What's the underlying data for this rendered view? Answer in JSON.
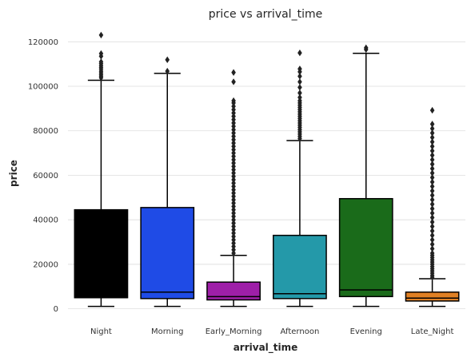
{
  "chart_data": {
    "type": "box",
    "title": "price vs arrival_time",
    "xlabel": "arrival_time",
    "ylabel": "price",
    "ylim": [
      -3000,
      128000
    ],
    "yticks": [
      0,
      20000,
      40000,
      60000,
      80000,
      100000,
      120000
    ],
    "ytick_labels": [
      "0",
      "20000",
      "40000",
      "60000",
      "80000",
      "100000",
      "120000"
    ],
    "grid": "horizontal",
    "categories": [
      "Night",
      "Morning",
      "Early_Morning",
      "Afternoon",
      "Evening",
      "Late_Night"
    ],
    "boxes": [
      {
        "category": "Night",
        "color": "#000000",
        "whisker_low": 1100,
        "q1": 5000,
        "median": 5000,
        "q3": 44500,
        "whisker_high": 102700,
        "outliers": [
          103800,
          104500,
          105200,
          106000,
          106800,
          107700,
          108500,
          109300,
          110200,
          111000,
          113500,
          114700,
          123000
        ]
      },
      {
        "category": "Morning",
        "color": "#1f4be6",
        "whisker_low": 1100,
        "q1": 4600,
        "median": 7500,
        "q3": 45500,
        "whisker_high": 105800,
        "outliers": [
          106800,
          111900
        ]
      },
      {
        "category": "Early_Morning",
        "color": "#9e1fa8",
        "whisker_low": 1100,
        "q1": 4000,
        "median": 5500,
        "q3": 12000,
        "whisker_high": 24000,
        "outliers": [
          25000,
          26500,
          28000,
          29500,
          31000,
          32500,
          34000,
          35500,
          37000,
          38500,
          40000,
          41500,
          43000,
          44500,
          46000,
          47500,
          49000,
          50500,
          52000,
          53500,
          55000,
          56500,
          58000,
          59500,
          61000,
          62500,
          64000,
          65500,
          67000,
          68500,
          70000,
          71500,
          73000,
          74500,
          76000,
          77500,
          79000,
          80500,
          82000,
          83500,
          85000,
          86500,
          88000,
          89500,
          91000,
          92500,
          93500,
          102000,
          106200
        ]
      },
      {
        "category": "Afternoon",
        "color": "#2499a9",
        "whisker_low": 1100,
        "q1": 4600,
        "median": 6800,
        "q3": 33000,
        "whisker_high": 75600,
        "outliers": [
          76500,
          77500,
          78500,
          79500,
          80500,
          81500,
          82500,
          83500,
          84500,
          85500,
          86500,
          87500,
          88500,
          89500,
          90500,
          91500,
          92500,
          93500,
          95000,
          97000,
          99500,
          102000,
          104500,
          106500,
          107800,
          115000
        ]
      },
      {
        "category": "Evening",
        "color": "#1a6b1a",
        "whisker_low": 1100,
        "q1": 5500,
        "median": 8500,
        "q3": 49500,
        "whisker_high": 114800,
        "outliers": [
          116500,
          117300
        ]
      },
      {
        "category": "Late_Night",
        "color": "#e08024",
        "whisker_low": 1100,
        "q1": 3500,
        "median": 4800,
        "q3": 7500,
        "whisker_high": 13500,
        "outliers": [
          14200,
          15000,
          16000,
          17000,
          18000,
          19000,
          20000,
          21000,
          22000,
          23000,
          24000,
          25000,
          27000,
          29000,
          31000,
          33000,
          35000,
          37000,
          39000,
          41000,
          43000,
          45000,
          47000,
          49000,
          51000,
          53000,
          55000,
          57000,
          59000,
          61000,
          63000,
          65000,
          67000,
          69000,
          71000,
          73000,
          75000,
          77000,
          79000,
          81000,
          83000,
          89200
        ]
      }
    ]
  }
}
